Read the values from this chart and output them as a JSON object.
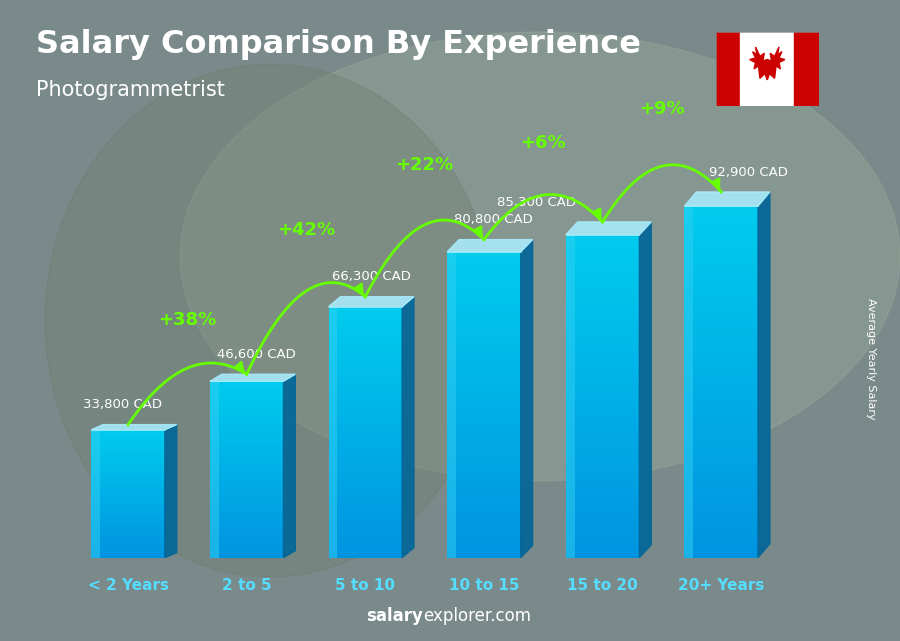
{
  "title": "Salary Comparison By Experience",
  "subtitle": "Photogrammetrist",
  "categories": [
    "< 2 Years",
    "2 to 5",
    "5 to 10",
    "10 to 15",
    "15 to 20",
    "20+ Years"
  ],
  "values": [
    33800,
    46600,
    66300,
    80800,
    85300,
    92900
  ],
  "labels": [
    "33,800 CAD",
    "46,600 CAD",
    "66,300 CAD",
    "80,800 CAD",
    "85,300 CAD",
    "92,900 CAD"
  ],
  "pct_changes": [
    "+38%",
    "+42%",
    "+22%",
    "+6%",
    "+9%"
  ],
  "bar_color_main": "#29c4e8",
  "bar_color_light": "#55ddff",
  "bar_color_dark": "#0088bb",
  "bar_color_side": "#006699",
  "bar_color_top": "#aaeeff",
  "bg_color": "#808080",
  "title_color": "#ffffff",
  "subtitle_color": "#ffffff",
  "label_color": "#ffffff",
  "pct_color": "#66ff00",
  "xlabel_color": "#55ddff",
  "watermark_bold": "salary",
  "watermark_regular": "explorer.com",
  "ylabel_text": "Average Yearly Salary",
  "ylabel_color": "#ffffff",
  "arrow_color": "#66ff00",
  "flag_red": "#cc0000",
  "flag_white": "#ffffff"
}
